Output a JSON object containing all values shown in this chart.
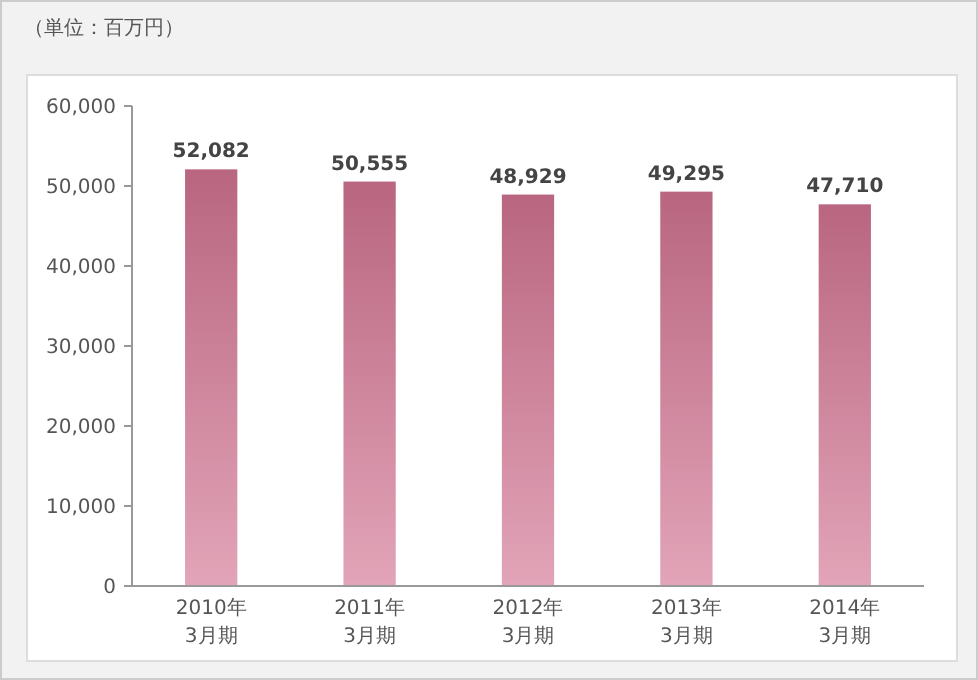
{
  "chart_data": {
    "type": "bar",
    "title": "（単位：百万円）",
    "categories": [
      "2010年\n3月期",
      "2011年\n3月期",
      "2012年\n3月期",
      "2013年\n3月期",
      "2014年\n3月期"
    ],
    "values": [
      52082,
      50555,
      48929,
      49295,
      47710
    ],
    "color": "#d27391",
    "ylim": [
      0,
      60000
    ],
    "yticks": [
      {
        "value": 0,
        "label": "0"
      },
      {
        "value": 10000,
        "label": "10,000"
      },
      {
        "value": 20000,
        "label": "20,000"
      },
      {
        "value": 30000,
        "label": "30,000"
      },
      {
        "value": 40000,
        "label": "40,000"
      },
      {
        "value": 50000,
        "label": "50,000"
      },
      {
        "value": 60000,
        "label": "60,000"
      }
    ],
    "value_labels": [
      "52,082",
      "50,555",
      "48,929",
      "49,295",
      "47,710"
    ]
  }
}
